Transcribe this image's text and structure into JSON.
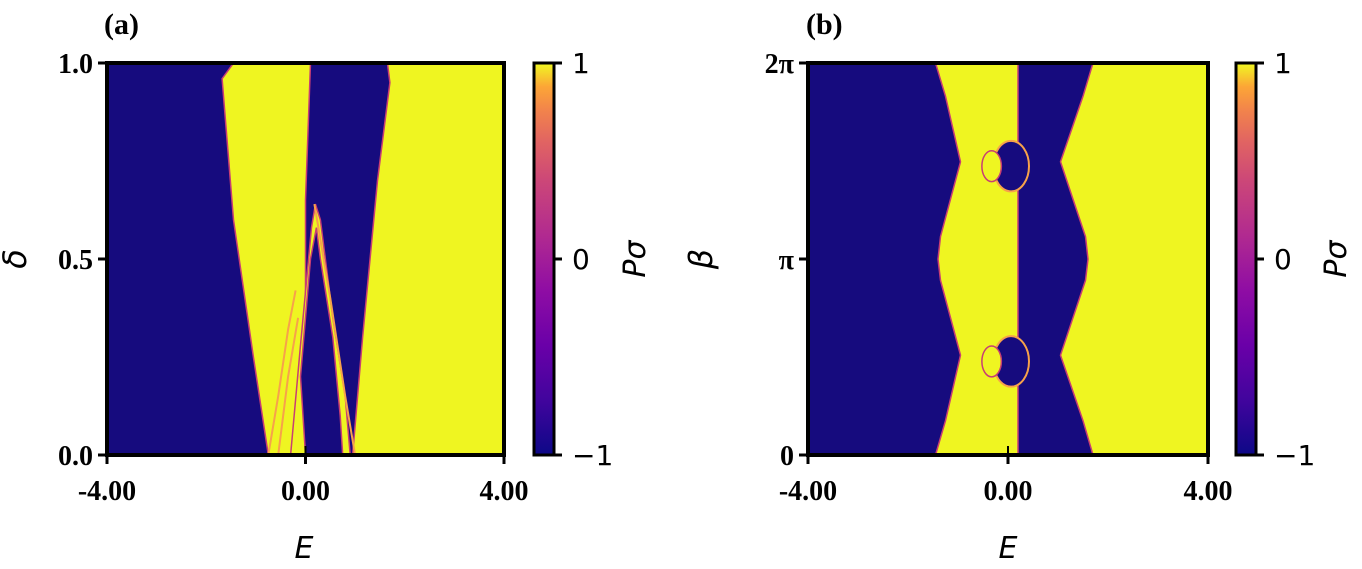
{
  "colors": {
    "low": "#160b7e",
    "mid": "#c83e73",
    "high": "#eff521",
    "frame": "#000000"
  },
  "colormap": "plasma",
  "chart_data": [
    {
      "type": "heatmap",
      "panel_label": "(a)",
      "xlabel": "E",
      "ylabel": "δ",
      "xlim": [
        -4.0,
        4.0
      ],
      "ylim": [
        0.0,
        1.0
      ],
      "x_ticks": [
        -4.0,
        0.0,
        4.0
      ],
      "x_tick_labels": [
        "-4.00",
        "0.00",
        "4.00"
      ],
      "y_ticks": [
        0.0,
        0.5,
        1.0
      ],
      "y_tick_labels": [
        "0.0",
        "0.5",
        "1.0"
      ],
      "colorbar": {
        "label": "Pσ",
        "range": [
          -1,
          1
        ],
        "ticks": [
          -1,
          0,
          1
        ],
        "tick_labels": [
          "−1",
          "0",
          "1"
        ]
      },
      "regions": [
        {
          "value": 1,
          "poly": [
            [
              -1.45,
              1.0
            ],
            [
              -1.68,
              0.96
            ],
            [
              -1.45,
              0.6
            ],
            [
              -1.05,
              0.25
            ],
            [
              -0.75,
              0.0
            ],
            [
              0.0,
              0.0
            ],
            [
              0.0,
              0.65
            ],
            [
              0.1,
              1.0
            ]
          ]
        },
        {
          "value": 1,
          "poly": [
            [
              0.95,
              0.0
            ],
            [
              1.15,
              0.3
            ],
            [
              1.45,
              0.7
            ],
            [
              1.7,
              0.95
            ],
            [
              1.65,
              1.0
            ],
            [
              4.0,
              1.0
            ],
            [
              4.0,
              0.0
            ]
          ]
        },
        {
          "value": 1,
          "poly": [
            [
              -0.3,
              0.0
            ],
            [
              -0.1,
              0.28
            ],
            [
              0.12,
              0.58
            ],
            [
              0.2,
              0.64
            ],
            [
              0.3,
              0.6
            ],
            [
              0.55,
              0.35
            ],
            [
              0.8,
              0.15
            ],
            [
              0.9,
              0.0
            ]
          ]
        },
        {
          "value": -1,
          "poly": [
            [
              0.0,
              0.0
            ],
            [
              -0.1,
              0.2
            ],
            [
              0.1,
              0.5
            ],
            [
              0.22,
              0.58
            ],
            [
              0.3,
              0.5
            ],
            [
              0.55,
              0.3
            ],
            [
              0.7,
              0.1
            ],
            [
              0.75,
              0.0
            ]
          ]
        }
      ],
      "boundary_curves": [
        [
          [
            -0.75,
            0.0
          ],
          [
            -0.55,
            0.15
          ],
          [
            -0.35,
            0.32
          ],
          [
            -0.2,
            0.42
          ]
        ],
        [
          [
            -0.55,
            0.0
          ],
          [
            -0.35,
            0.2
          ],
          [
            -0.15,
            0.35
          ]
        ],
        [
          [
            0.18,
            0.64
          ],
          [
            0.5,
            0.4
          ],
          [
            0.8,
            0.15
          ],
          [
            1.0,
            0.0
          ]
        ]
      ]
    },
    {
      "type": "heatmap",
      "panel_label": "(b)",
      "xlabel": "E",
      "ylabel": "β",
      "xlim": [
        -4.0,
        4.0
      ],
      "ylim": [
        0,
        6.2832
      ],
      "x_ticks": [
        -4.0,
        0.0,
        4.0
      ],
      "x_tick_labels": [
        "-4.00",
        "0.00",
        "4.00"
      ],
      "y_ticks": [
        0,
        3.1416,
        6.2832
      ],
      "y_tick_labels": [
        "0",
        "π",
        "2π"
      ],
      "colorbar": {
        "label": "Pσ",
        "range": [
          -1,
          1
        ],
        "ticks": [
          -1,
          0,
          1
        ],
        "tick_labels": [
          "−1",
          "0",
          "1"
        ]
      },
      "left_boundary": [
        [
          -1.45,
          0.0
        ],
        [
          -1.25,
          0.55
        ],
        [
          -0.95,
          1.6
        ],
        [
          -1.15,
          2.2
        ],
        [
          -1.35,
          2.8
        ],
        [
          -1.4,
          3.14
        ],
        [
          -1.35,
          3.5
        ],
        [
          -1.15,
          4.1
        ],
        [
          -0.95,
          4.7
        ],
        [
          -1.25,
          5.75
        ],
        [
          -1.45,
          6.2832
        ]
      ],
      "right_boundary": [
        [
          1.7,
          0.0
        ],
        [
          1.5,
          0.55
        ],
        [
          1.05,
          1.6
        ],
        [
          1.3,
          2.2
        ],
        [
          1.55,
          2.8
        ],
        [
          1.6,
          3.14
        ],
        [
          1.55,
          3.5
        ],
        [
          1.3,
          4.1
        ],
        [
          1.05,
          4.7
        ],
        [
          1.5,
          5.75
        ],
        [
          1.7,
          6.2832
        ]
      ],
      "center_line_E": 0.2,
      "islands": [
        {
          "center": [
            -0.1,
            1.5
          ],
          "rx": 0.65,
          "ry": 0.45
        },
        {
          "center": [
            -0.1,
            4.63
          ],
          "rx": 0.65,
          "ry": 0.45
        }
      ]
    }
  ]
}
